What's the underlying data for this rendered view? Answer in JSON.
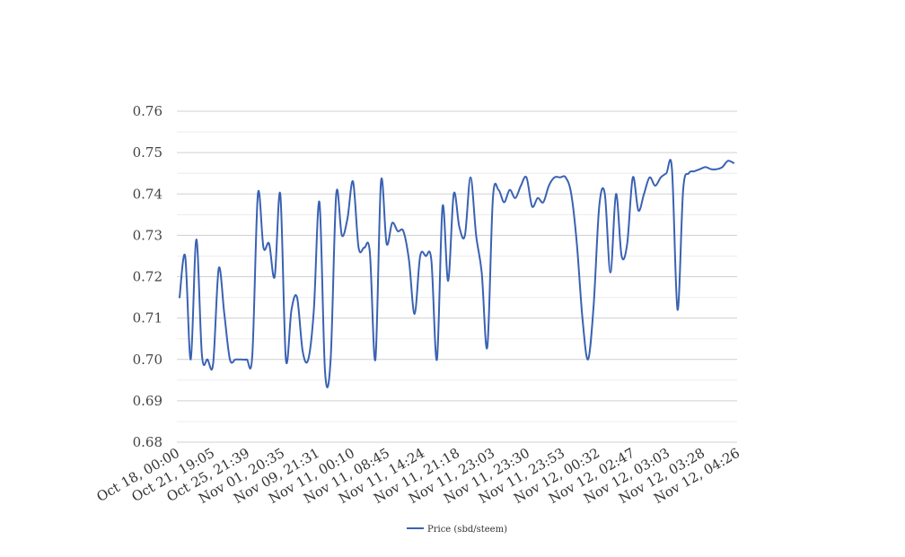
{
  "chart_data": {
    "type": "line",
    "title": "",
    "xlabel": "",
    "ylabel": "",
    "ylim": [
      0.68,
      0.76
    ],
    "yticks": [
      "0.68",
      "0.69",
      "0.70",
      "0.71",
      "0.72",
      "0.73",
      "0.74",
      "0.75",
      "0.76"
    ],
    "minor_grid": true,
    "legend_position": "bottom-center",
    "line_color": "#3a62b3",
    "grid_color": "#d0d0d0",
    "minor_grid_color": "#ececec",
    "x_tick_labels": [
      "Oct 18, 00:00",
      "Oct 21, 19:05",
      "Oct 25, 21:39",
      "Nov 01, 20:35",
      "Nov 09, 21:31",
      "Nov 11, 00:10",
      "Nov 11, 08:45",
      "Nov 11, 14:24",
      "Nov 11, 21:18",
      "Nov 11, 23:03",
      "Nov 11, 23:30",
      "Nov 11, 23:53",
      "Nov 12, 00:32",
      "Nov 12, 02:47",
      "Nov 12, 03:03",
      "Nov 12, 03:28",
      "Nov 12, 04:26"
    ],
    "series": [
      {
        "name": "Price (sbd/steem)",
        "values": [
          0.715,
          0.725,
          0.7,
          0.729,
          0.701,
          0.7,
          0.699,
          0.722,
          0.711,
          0.7,
          0.7,
          0.7,
          0.7,
          0.701,
          0.74,
          0.727,
          0.728,
          0.72,
          0.74,
          0.7,
          0.712,
          0.715,
          0.702,
          0.7,
          0.712,
          0.738,
          0.697,
          0.7,
          0.74,
          0.73,
          0.734,
          0.743,
          0.727,
          0.727,
          0.726,
          0.7,
          0.743,
          0.728,
          0.733,
          0.731,
          0.731,
          0.724,
          0.711,
          0.725,
          0.725,
          0.724,
          0.7,
          0.737,
          0.719,
          0.74,
          0.732,
          0.73,
          0.744,
          0.73,
          0.721,
          0.703,
          0.739,
          0.741,
          0.738,
          0.741,
          0.739,
          0.742,
          0.744,
          0.737,
          0.739,
          0.738,
          0.742,
          0.744,
          0.744,
          0.744,
          0.74,
          0.728,
          0.71,
          0.7,
          0.713,
          0.737,
          0.74,
          0.721,
          0.74,
          0.725,
          0.728,
          0.744,
          0.736,
          0.74,
          0.744,
          0.742,
          0.744,
          0.745,
          0.746,
          0.712,
          0.741,
          0.745,
          0.7455,
          0.746,
          0.7465,
          0.746,
          0.746,
          0.7465,
          0.748,
          0.7475
        ]
      }
    ]
  }
}
